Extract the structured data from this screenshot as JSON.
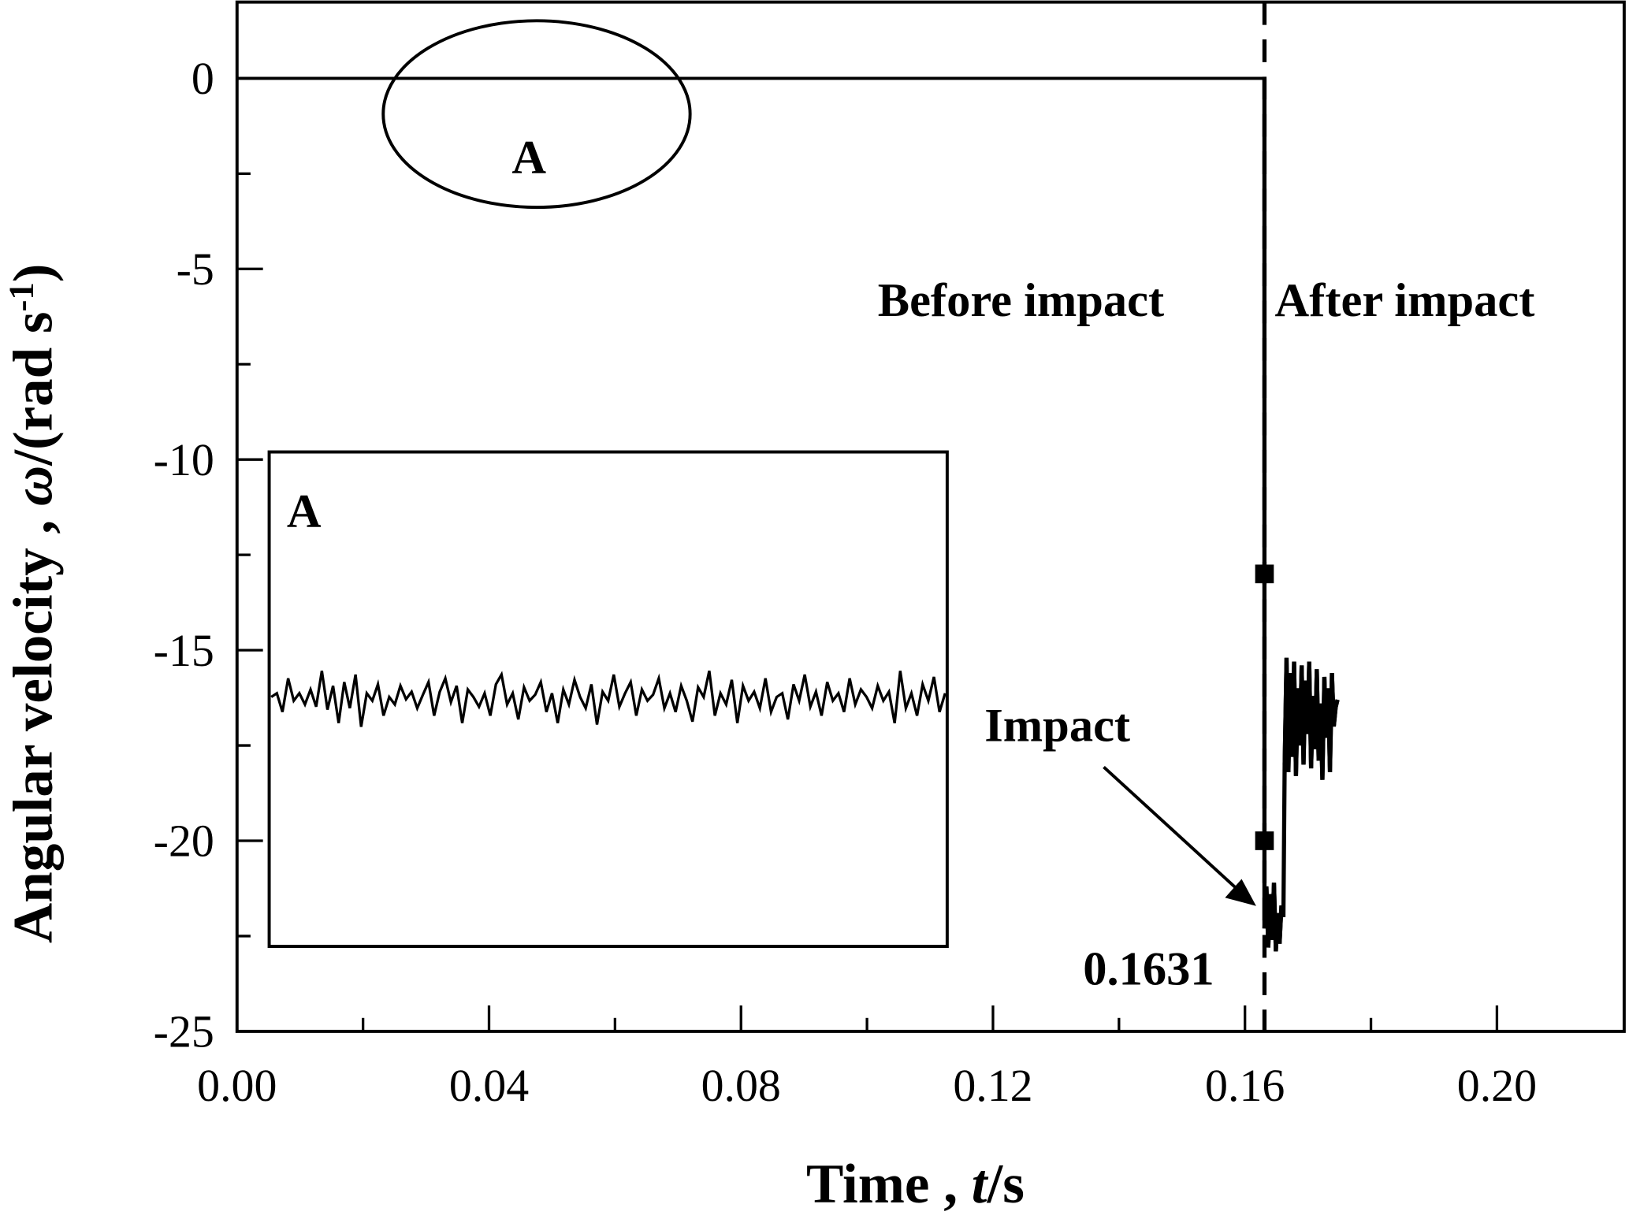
{
  "chart_data": {
    "type": "line",
    "title": "",
    "xlabel_main": "Time , ",
    "xlabel_var": "t",
    "xlabel_unit": "/s",
    "ylabel_main": "Angular  velocity , ",
    "ylabel_var": "ω",
    "ylabel_unit": "/(rad s",
    "ylabel_sup": "-1",
    "ylabel_close": ")",
    "xlim": [
      0,
      0.2202
    ],
    "ylim": [
      -25,
      2
    ],
    "xticks": [
      0.0,
      0.04,
      0.08,
      0.12,
      0.16,
      0.2
    ],
    "xtick_labels": [
      "0.00",
      "0.04",
      "0.08",
      "0.12",
      "0.16",
      "0.20"
    ],
    "xminor": [
      0.02,
      0.06,
      0.1,
      0.14,
      0.18
    ],
    "yticks": [
      0,
      -5,
      -10,
      -15,
      -20,
      -25
    ],
    "ytick_labels": [
      "0",
      "-5",
      "-10",
      "-15",
      "-20",
      "-25"
    ],
    "yminor": [
      -2.5,
      -7.5,
      -12.5,
      -17.5,
      -22.5
    ],
    "grid": false,
    "series": [
      {
        "name": "before impact",
        "points": [
          [
            0,
            0
          ],
          [
            0.1631,
            0
          ]
        ]
      },
      {
        "name": "impact",
        "x_start": 0.1631,
        "x_step": 0.0003,
        "values": [
          -22.3,
          -21.2,
          -22.8,
          -21.4,
          -22.6,
          -21.1,
          -22.9,
          -21.9,
          -22.7,
          -21.7,
          -22.0
        ]
      },
      {
        "name": "after impact",
        "x_start": 0.1663,
        "x_step": 0.0003,
        "values": [
          -18.0,
          -15.2,
          -18.2,
          -15.6,
          -17.8,
          -15.3,
          -18.3,
          -16.0,
          -17.5,
          -15.4,
          -18.0,
          -15.8,
          -17.2,
          -15.3,
          -18.1,
          -16.2,
          -17.6,
          -15.5,
          -17.9,
          -16.4,
          -18.4,
          -15.7,
          -17.3,
          -16.0,
          -18.2,
          -15.6,
          -17.0,
          -16.5,
          -16.3
        ]
      }
    ],
    "markers": [
      [
        0.1631,
        -13
      ],
      [
        0.1631,
        -20
      ]
    ],
    "impact_time": 0.1631,
    "annotations": {
      "before": "Before impact",
      "after": "After impact",
      "impact": "Impact",
      "impact_time_label": "0.1631",
      "region_label": "A"
    },
    "inset": {
      "label": "A",
      "relative_values": [
        0.55,
        0.6,
        0.35,
        0.8,
        0.5,
        0.6,
        0.45,
        0.65,
        0.42,
        0.9,
        0.38,
        0.7,
        0.2,
        0.75,
        0.4,
        0.85,
        0.15,
        0.6,
        0.5,
        0.72,
        0.3,
        0.55,
        0.45,
        0.7,
        0.52,
        0.62,
        0.4,
        0.58,
        0.75,
        0.3,
        0.62,
        0.8,
        0.48,
        0.7,
        0.2,
        0.65,
        0.55,
        0.42,
        0.6,
        0.3,
        0.72,
        0.85,
        0.45,
        0.6,
        0.25,
        0.68,
        0.5,
        0.58,
        0.75,
        0.35,
        0.6,
        0.2,
        0.65,
        0.45,
        0.78,
        0.55,
        0.4,
        0.72,
        0.18,
        0.62,
        0.5,
        0.85,
        0.42,
        0.6,
        0.75,
        0.3,
        0.65,
        0.5,
        0.58,
        0.8,
        0.4,
        0.6,
        0.35,
        0.7,
        0.5,
        0.22,
        0.68,
        0.55,
        0.9,
        0.3,
        0.6,
        0.45,
        0.78,
        0.2,
        0.7,
        0.5,
        0.62,
        0.4,
        0.8,
        0.35,
        0.55,
        0.6,
        0.25,
        0.72,
        0.5,
        0.85,
        0.42,
        0.62,
        0.3,
        0.75,
        0.5,
        0.6,
        0.35,
        0.8,
        0.45,
        0.65,
        0.55,
        0.4,
        0.7,
        0.5,
        0.62,
        0.2,
        0.9,
        0.4,
        0.6,
        0.3,
        0.72,
        0.5,
        0.82,
        0.35,
        0.6
      ]
    }
  }
}
